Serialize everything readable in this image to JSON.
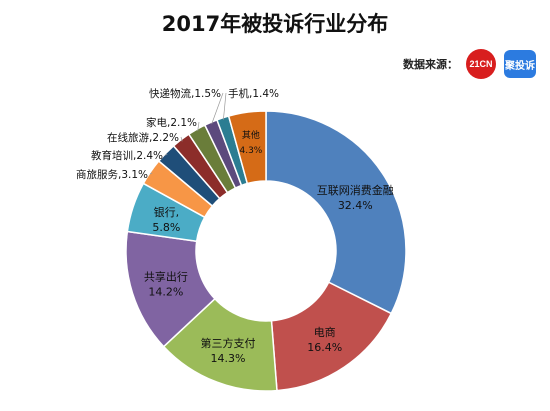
{
  "chart_data": {
    "type": "pie",
    "title": "2017年被投诉行业分布",
    "source_label": "数据来源：",
    "logos": [
      "21CN",
      "聚投诉"
    ],
    "colors": {
      "互联网消费金融": "#4f81bd",
      "电商": "#c0504d",
      "第三方支付": "#9bbb59",
      "共享出行": "#8064a2",
      "银行": "#4bacc6",
      "商旅服务": "#f79646",
      "教育培训": "#1f4e79",
      "在线旅游": "#8c2d2a",
      "家电": "#6a7d3a",
      "快递物流": "#5c4a7d",
      "手机": "#2b7d92",
      "其他": "#d56b17"
    },
    "slices": [
      {
        "name": "互联网消费金融",
        "value": 32.4,
        "label": "32.4%"
      },
      {
        "name": "电商",
        "value": 16.4,
        "label": "16.4%"
      },
      {
        "name": "第三方支付",
        "value": 14.3,
        "label": "14.3%"
      },
      {
        "name": "共享出行",
        "value": 14.2,
        "label": "14.2%"
      },
      {
        "name": "银行",
        "value": 5.8,
        "label": "5.8%"
      },
      {
        "name": "商旅服务",
        "value": 3.1,
        "label": "3.1%"
      },
      {
        "name": "教育培训",
        "value": 2.4,
        "label": "2.4%"
      },
      {
        "name": "在线旅游",
        "value": 2.2,
        "label": "2.2%"
      },
      {
        "name": "家电",
        "value": 2.1,
        "label": "2.1%"
      },
      {
        "name": "快递物流",
        "value": 1.5,
        "label": "1.5%"
      },
      {
        "name": "手机",
        "value": 1.4,
        "label": "1.4%"
      },
      {
        "name": "其他",
        "value": 4.3,
        "label": "4.3%"
      }
    ]
  }
}
